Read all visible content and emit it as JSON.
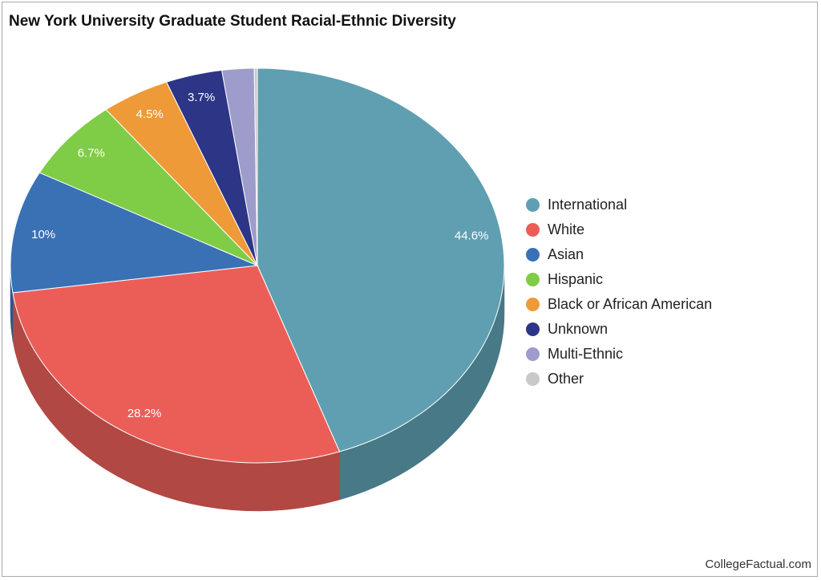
{
  "title": "New York University Graduate Student Racial-Ethnic Diversity",
  "source": "CollegeFactual.com",
  "chart_data": {
    "type": "pie",
    "title": "New York University Graduate Student Racial-Ethnic Diversity",
    "legend_position": "right",
    "three_d": true,
    "slices": [
      {
        "name": "International",
        "value": 44.6,
        "label": "44.6%",
        "color": "#5f9fb1",
        "shade": "#477987"
      },
      {
        "name": "White",
        "value": 28.2,
        "label": "28.2%",
        "color": "#eb5e58",
        "shade": "#b14843"
      },
      {
        "name": "Asian",
        "value": 10.0,
        "label": "10%",
        "color": "#3a71b5",
        "shade": "#2c568a"
      },
      {
        "name": "Hispanic",
        "value": 6.7,
        "label": "6.7%",
        "color": "#7fcc47",
        "shade": "#609b36"
      },
      {
        "name": "Black or African American",
        "value": 4.5,
        "label": "4.5%",
        "color": "#ee9a38",
        "shade": "#b5752a"
      },
      {
        "name": "Unknown",
        "value": 3.7,
        "label": "3.7%",
        "color": "#2c3586",
        "shade": "#212866"
      },
      {
        "name": "Multi-Ethnic",
        "value": 2.1,
        "label": "",
        "color": "#9e9ccb",
        "shade": "#78779b"
      },
      {
        "name": "Other",
        "value": 0.2,
        "label": "",
        "color": "#c9c9c9",
        "shade": "#999999"
      }
    ]
  }
}
